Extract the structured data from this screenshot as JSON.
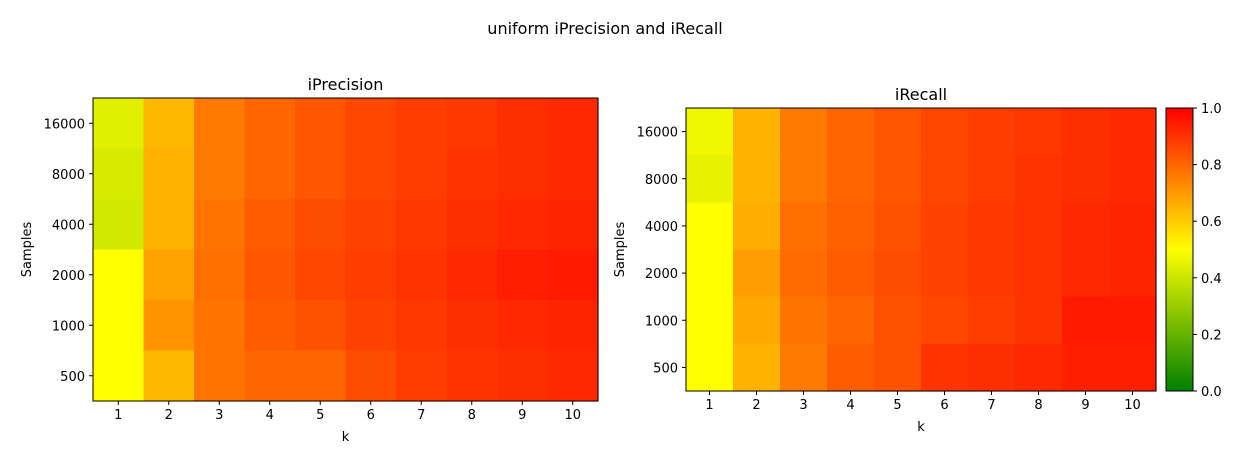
{
  "figure_title": "uniform iPrecision and iRecall",
  "colorbar": {
    "min": 0.0,
    "max": 1.0,
    "ticks": [
      "0.0",
      "0.2",
      "0.4",
      "0.6",
      "0.8",
      "1.0"
    ],
    "colors": [
      "#008000",
      "#ffff00",
      "#ff0000"
    ]
  },
  "chart_data": [
    {
      "type": "heatmap",
      "title": "iPrecision",
      "xlabel": "k",
      "ylabel": "Samples",
      "x": [
        "1",
        "2",
        "3",
        "4",
        "5",
        "6",
        "7",
        "8",
        "9",
        "10"
      ],
      "y": [
        "16000",
        "8000",
        "4000",
        "2000",
        "1000",
        "500"
      ],
      "values": [
        [
          0.44,
          0.64,
          0.76,
          0.8,
          0.83,
          0.86,
          0.88,
          0.89,
          0.91,
          0.92
        ],
        [
          0.42,
          0.65,
          0.76,
          0.8,
          0.83,
          0.86,
          0.88,
          0.9,
          0.91,
          0.92
        ],
        [
          0.41,
          0.65,
          0.77,
          0.82,
          0.85,
          0.87,
          0.89,
          0.91,
          0.92,
          0.93
        ],
        [
          0.5,
          0.68,
          0.78,
          0.83,
          0.86,
          0.88,
          0.9,
          0.92,
          0.94,
          0.95
        ],
        [
          0.5,
          0.71,
          0.77,
          0.82,
          0.84,
          0.87,
          0.89,
          0.91,
          0.92,
          0.93
        ],
        [
          0.5,
          0.64,
          0.77,
          0.8,
          0.8,
          0.85,
          0.88,
          0.9,
          0.91,
          0.92
        ]
      ]
    },
    {
      "type": "heatmap",
      "title": "iRecall",
      "xlabel": "k",
      "ylabel": "Samples",
      "x": [
        "1",
        "2",
        "3",
        "4",
        "5",
        "6",
        "7",
        "8",
        "9",
        "10"
      ],
      "y": [
        "16000",
        "8000",
        "4000",
        "2000",
        "1000",
        "500"
      ],
      "values": [
        [
          0.47,
          0.65,
          0.76,
          0.8,
          0.83,
          0.86,
          0.88,
          0.89,
          0.91,
          0.92
        ],
        [
          0.45,
          0.65,
          0.76,
          0.8,
          0.83,
          0.86,
          0.88,
          0.9,
          0.91,
          0.92
        ],
        [
          0.5,
          0.66,
          0.78,
          0.81,
          0.84,
          0.87,
          0.89,
          0.9,
          0.92,
          0.93
        ],
        [
          0.5,
          0.69,
          0.79,
          0.82,
          0.85,
          0.87,
          0.89,
          0.9,
          0.92,
          0.93
        ],
        [
          0.5,
          0.67,
          0.77,
          0.8,
          0.84,
          0.86,
          0.88,
          0.9,
          0.95,
          0.95
        ],
        [
          0.5,
          0.65,
          0.76,
          0.82,
          0.84,
          0.9,
          0.91,
          0.92,
          0.94,
          0.94
        ]
      ]
    }
  ]
}
